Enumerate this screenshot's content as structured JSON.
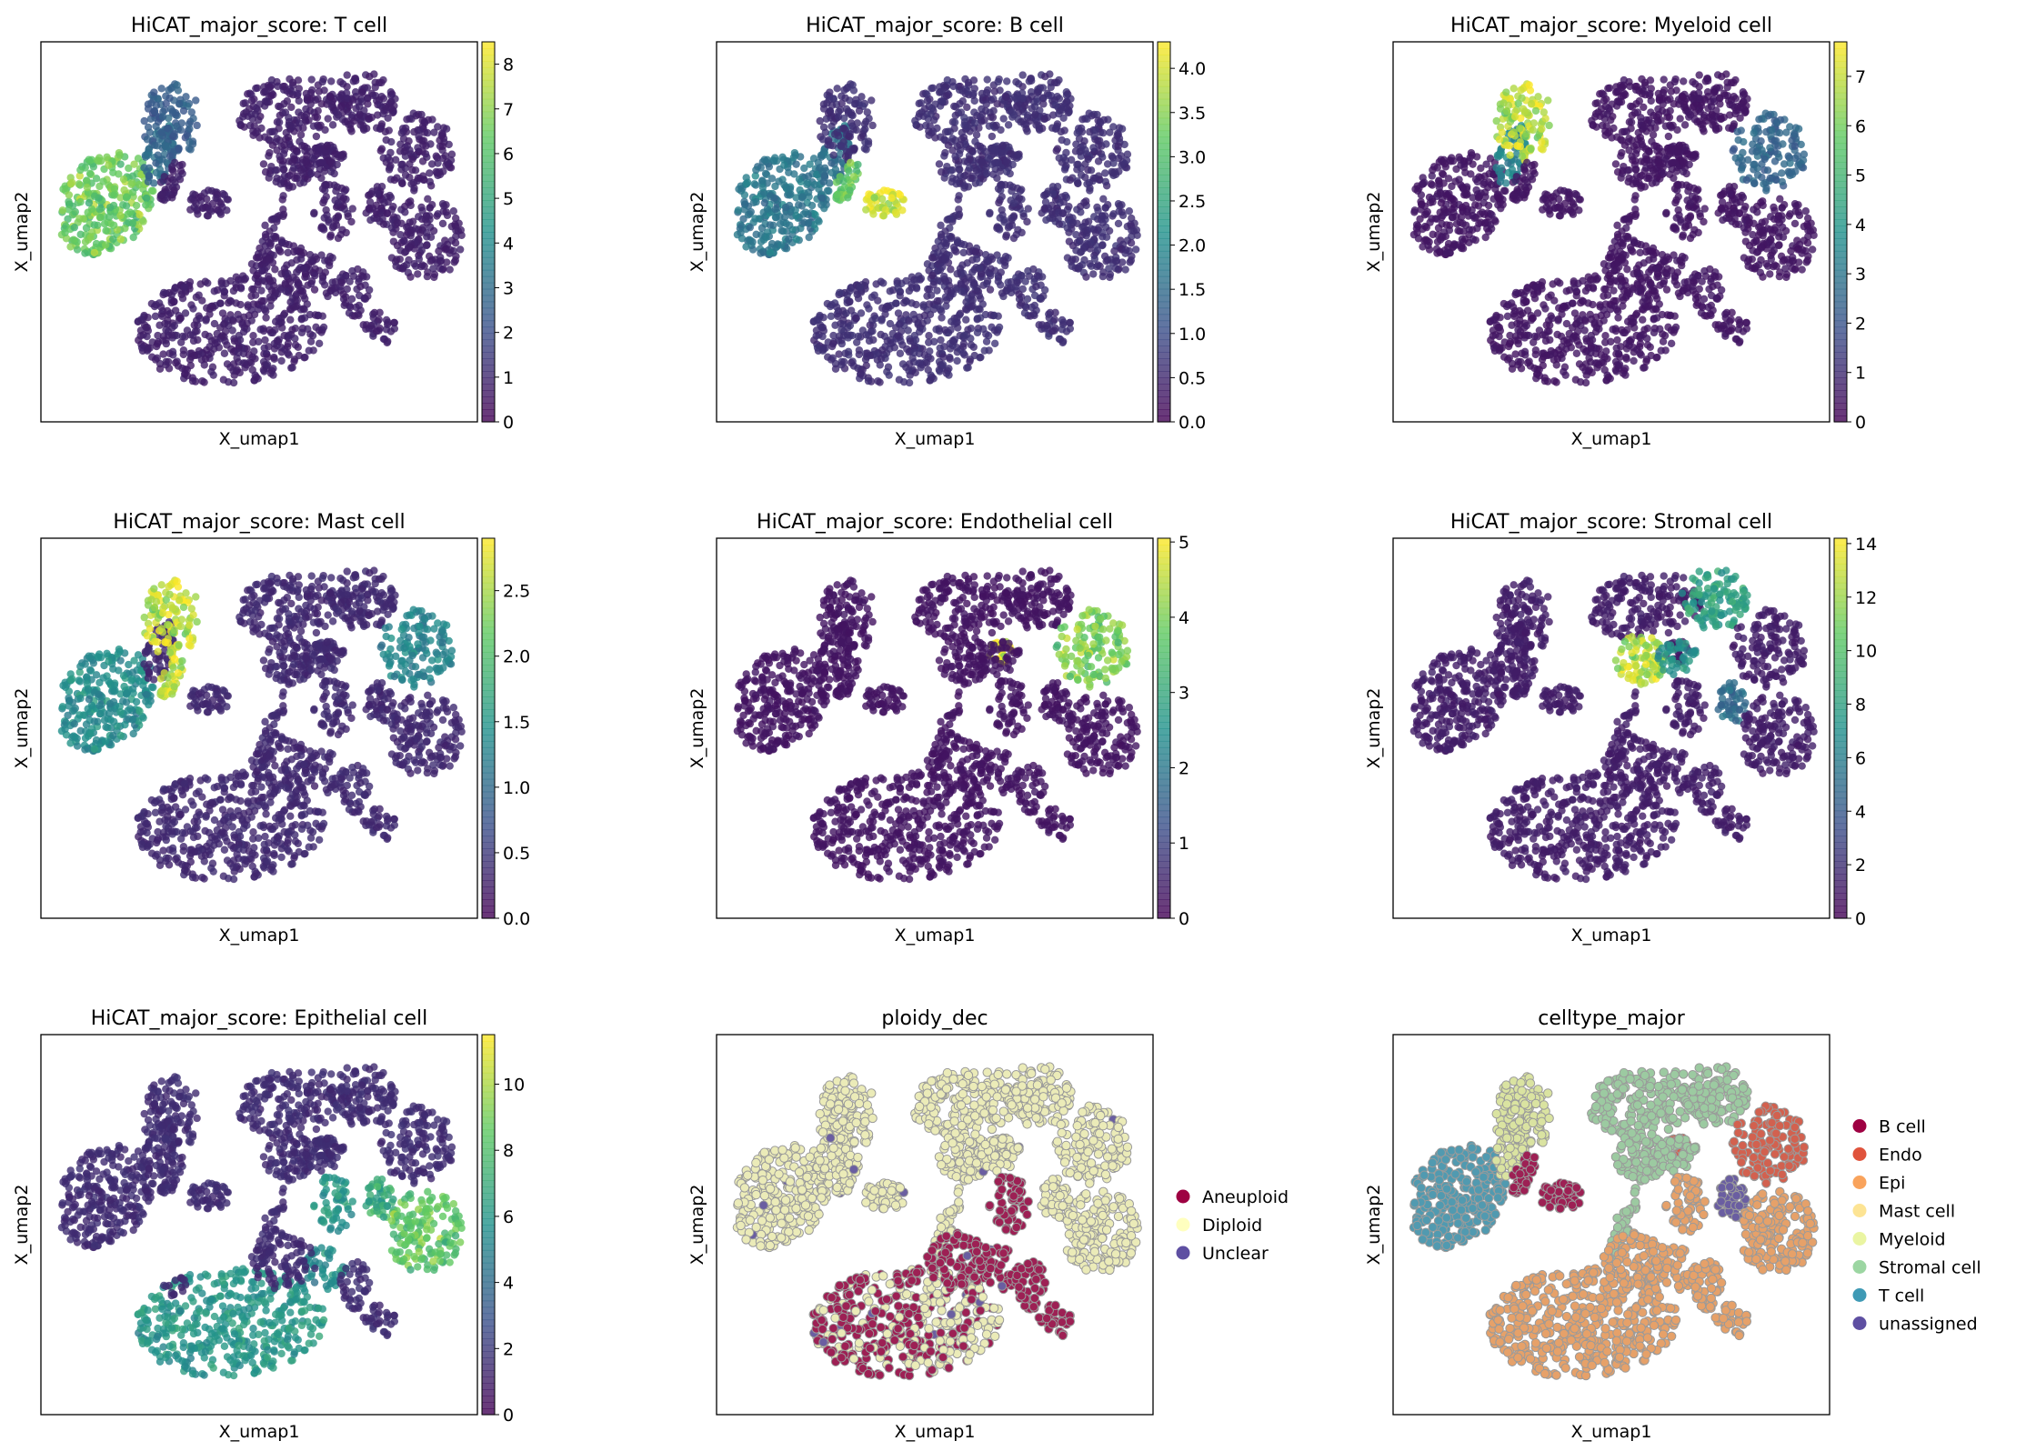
{
  "colors": {
    "viridis": [
      "#440154",
      "#3b528b",
      "#21918c",
      "#5ec962",
      "#fde725"
    ],
    "cell_alpha": 0.8,
    "gray_outline": "#9a9a9a"
  },
  "chart_data": [
    {
      "type": "scatter",
      "title": "HiCAT_major_score: T cell",
      "xlabel": "X_umap1",
      "ylabel": "X_umap2",
      "colorbar": {
        "min": 0,
        "max": 8.5,
        "ticks": [
          "0",
          "1",
          "2",
          "3",
          "4",
          "5",
          "6",
          "7",
          "8"
        ],
        "tick_values": [
          0,
          1,
          2,
          3,
          4,
          5,
          6,
          7,
          8
        ]
      },
      "hotspots": [
        {
          "cluster": "left-lobe",
          "value": 6.5
        },
        {
          "cluster": "upper-left-arm",
          "value": 3.0
        },
        {
          "cluster": "upper-left-blob",
          "value": 2.5
        }
      ],
      "background_value": 0.8
    },
    {
      "type": "scatter",
      "title": "HiCAT_major_score: B cell",
      "xlabel": "X_umap1",
      "ylabel": "X_umap2",
      "colorbar": {
        "min": 0,
        "max": 4.3,
        "ticks": [
          "0.0",
          "0.5",
          "1.0",
          "1.5",
          "2.0",
          "2.5",
          "3.0",
          "3.5",
          "4.0"
        ],
        "tick_values": [
          0,
          0.5,
          1,
          1.5,
          2,
          2.5,
          3,
          3.5,
          4
        ]
      },
      "hotspots": [
        {
          "cluster": "b-cell-blob",
          "value": 4.0
        },
        {
          "cluster": "b-cell-strip",
          "value": 3.2
        },
        {
          "cluster": "left-lobe",
          "value": 1.7
        },
        {
          "cluster": "upper-left-arm",
          "value": 1.6
        }
      ],
      "background_value": 0.6
    },
    {
      "type": "scatter",
      "title": "HiCAT_major_score: Myeloid cell",
      "xlabel": "X_umap1",
      "ylabel": "X_umap2",
      "colorbar": {
        "min": 0,
        "max": 7.7,
        "ticks": [
          "0",
          "1",
          "2",
          "3",
          "4",
          "5",
          "6",
          "7"
        ],
        "tick_values": [
          0,
          1,
          2,
          3,
          4,
          5,
          6,
          7
        ]
      },
      "hotspots": [
        {
          "cluster": "upper-left-blob",
          "value": 6.8
        },
        {
          "cluster": "upper-left-arm",
          "value": 3.5
        },
        {
          "cluster": "right-blob",
          "value": 2.5
        }
      ],
      "background_value": 0.5
    },
    {
      "type": "scatter",
      "title": "HiCAT_major_score: Mast cell",
      "xlabel": "X_umap1",
      "ylabel": "X_umap2",
      "colorbar": {
        "min": 0,
        "max": 2.9,
        "ticks": [
          "0.0",
          "0.5",
          "1.0",
          "1.5",
          "2.0",
          "2.5"
        ],
        "tick_values": [
          0,
          0.5,
          1,
          1.5,
          2,
          2.5
        ]
      },
      "hotspots": [
        {
          "cluster": "upper-left-blob",
          "value": 2.6
        },
        {
          "cluster": "b-cell-strip",
          "value": 2.6
        },
        {
          "cluster": "left-lobe",
          "value": 1.4
        },
        {
          "cluster": "right-blob",
          "value": 1.3
        }
      ],
      "background_value": 0.35
    },
    {
      "type": "scatter",
      "title": "HiCAT_major_score: Endothelial cell",
      "xlabel": "X_umap1",
      "ylabel": "X_umap2",
      "colorbar": {
        "min": 0,
        "max": 5.05,
        "ticks": [
          "0",
          "1",
          "2",
          "3",
          "4",
          "5"
        ],
        "tick_values": [
          0,
          1,
          2,
          3,
          4,
          5
        ]
      },
      "hotspots": [
        {
          "cluster": "right-blob",
          "value": 4.0
        },
        {
          "cluster": "endo-small",
          "value": 4.8
        }
      ],
      "background_value": 0.3
    },
    {
      "type": "scatter",
      "title": "HiCAT_major_score: Stromal cell",
      "xlabel": "X_umap1",
      "ylabel": "X_umap2",
      "colorbar": {
        "min": 0,
        "max": 14.2,
        "ticks": [
          "0",
          "2",
          "4",
          "6",
          "8",
          "10",
          "12",
          "14"
        ],
        "tick_values": [
          0,
          2,
          4,
          6,
          8,
          10,
          12,
          14
        ]
      },
      "hotspots": [
        {
          "cluster": "stromal-center",
          "value": 12.8
        },
        {
          "cluster": "top-right",
          "value": 8.0
        },
        {
          "cluster": "upper-mid",
          "value": 7.0
        },
        {
          "cluster": "mid-right-small",
          "value": 5.0
        }
      ],
      "background_value": 1.2
    },
    {
      "type": "scatter",
      "title": "HiCAT_major_score: Epithelial cell",
      "xlabel": "X_umap1",
      "ylabel": "X_umap2",
      "colorbar": {
        "min": 0,
        "max": 11.5,
        "ticks": [
          "0",
          "2",
          "4",
          "6",
          "8",
          "10"
        ],
        "tick_values": [
          0,
          2,
          4,
          6,
          8,
          10
        ]
      },
      "hotspots": [
        {
          "cluster": "big-bottom",
          "value": 6.0
        },
        {
          "cluster": "right-mid",
          "value": 8.5
        },
        {
          "cluster": "mid-right-small",
          "value": 7.0
        },
        {
          "cluster": "center-right",
          "value": 6.0
        },
        {
          "cluster": "center-small",
          "value": 5.5
        }
      ],
      "background_value": 1.5
    },
    {
      "type": "scatter",
      "title": "ploidy_dec",
      "xlabel": "X_umap1",
      "ylabel": "X_umap2",
      "categorical": true,
      "legend": [
        {
          "name": "Aneuploid",
          "color": "#9e0142"
        },
        {
          "name": "Diploid",
          "color": "#ffffbf"
        },
        {
          "name": "Unclear",
          "color": "#5e4fa2"
        }
      ]
    },
    {
      "type": "scatter",
      "title": "celltype_major",
      "xlabel": "X_umap1",
      "ylabel": "X_umap2",
      "categorical": true,
      "legend": [
        {
          "name": "B cell",
          "color": "#9e0142"
        },
        {
          "name": "Endo",
          "color": "#e0533c"
        },
        {
          "name": "Epi",
          "color": "#f9a35c"
        },
        {
          "name": "Mast cell",
          "color": "#fde494"
        },
        {
          "name": "Myeloid",
          "color": "#eaf5a2"
        },
        {
          "name": "Stromal cell",
          "color": "#9cd6a2"
        },
        {
          "name": "T cell",
          "color": "#3f9ab5"
        },
        {
          "name": "unassigned",
          "color": "#5e4fa2"
        }
      ]
    }
  ]
}
